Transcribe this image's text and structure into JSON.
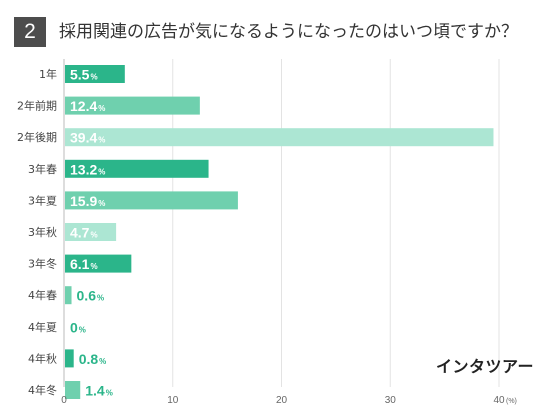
{
  "header": {
    "number": "2",
    "title": "採用関連の広告が気になるようになったのはいつ頃ですか？"
  },
  "logo_text": "インタツアー",
  "chart_data": {
    "type": "bar",
    "orientation": "horizontal",
    "categories": [
      "1年",
      "2年前期",
      "2年後期",
      "3年春",
      "3年夏",
      "3年秋",
      "3年冬",
      "4年春",
      "4年夏",
      "4年秋",
      "4年冬"
    ],
    "values": [
      5.5,
      12.4,
      39.4,
      13.2,
      15.9,
      4.7,
      6.1,
      0.6,
      0,
      0.8,
      1.4
    ],
    "value_labels": [
      "5.5",
      "12.4",
      "39.4",
      "13.2",
      "15.9",
      "4.7",
      "6.1",
      "0.6",
      "0",
      "0.8",
      "1.4"
    ],
    "value_suffix": "%",
    "xticks": [
      "0",
      "10",
      "20",
      "30",
      "40"
    ],
    "xunit": "(%)",
    "xlim": [
      0,
      40
    ],
    "grid": true,
    "bar_colors": [
      "#2bb58a",
      "#6fd0ae",
      "#ace6d3",
      "#2bb58a",
      "#6fd0ae",
      "#ace6d3",
      "#2bb58a",
      "#6fd0ae",
      "#ace6d3",
      "#2bb58a",
      "#6fd0ae"
    ],
    "label_colors": {
      "inside": "#ffffff",
      "outside": "#2bb58a"
    }
  }
}
